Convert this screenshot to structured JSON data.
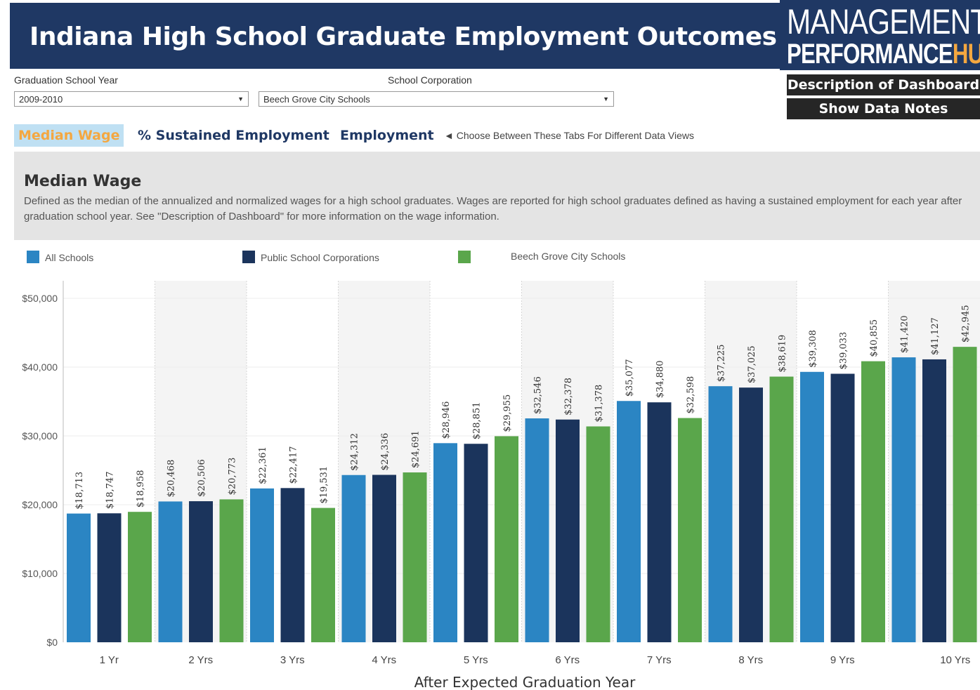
{
  "header": {
    "title": "Indiana High School Graduate Employment Outcomes"
  },
  "logo": {
    "line1": "MANAGEMENT",
    "line2a": "PERFORMANCE",
    "line2b": "HUB",
    "hub_color": "#f4a740"
  },
  "filters": {
    "year_label": "Graduation School Year",
    "year_value": "2009-2010",
    "corp_label": "School Corporation",
    "corp_value": "Beech Grove City Schools"
  },
  "buttons": {
    "description": "Description of Dashboard",
    "notes": "Show Data Notes"
  },
  "tabs": [
    {
      "label": "Median Wage",
      "active": true
    },
    {
      "label": "% Sustained Employment",
      "active": false
    },
    {
      "label": "Employment",
      "active": false
    }
  ],
  "tab_hint": "Choose Between These Tabs For Different Data Views",
  "description": {
    "title": "Median Wage",
    "text": "Defined as the median of the annualized and normalized wages for a high school graduates. Wages are reported for high school graduates defined as having a sustained employment for each year after graduation school year. See \"Description of Dashboard\" for more information on the wage information."
  },
  "chart_data": {
    "type": "bar",
    "categories": [
      "1 Yr",
      "2 Yrs",
      "3 Yrs",
      "4 Yrs",
      "5 Yrs",
      "6 Yrs",
      "7 Yrs",
      "8 Yrs",
      "9 Yrs",
      "10 Yrs"
    ],
    "series": [
      {
        "name": "All Schools",
        "color": "#2b85c3",
        "values": [
          18713,
          20468,
          22361,
          24312,
          28946,
          32546,
          35077,
          37225,
          39308,
          41420
        ],
        "labels": [
          "$18,713",
          "$20,468",
          "$22,361",
          "$24,312",
          "$28,946",
          "$32,546",
          "$35,077",
          "$37,225",
          "$39,308",
          "$41,420"
        ]
      },
      {
        "name": "Public School Corporations",
        "color": "#1b345c",
        "values": [
          18747,
          20506,
          22417,
          24336,
          28851,
          32378,
          34880,
          37025,
          39033,
          41127
        ],
        "labels": [
          "$18,747",
          "$20,506",
          "$22,417",
          "$24,336",
          "$28,851",
          "$32,378",
          "$34,880",
          "$37,025",
          "$39,033",
          "$41,127"
        ]
      },
      {
        "name": "Beech Grove City Schools",
        "color": "#5aa64b",
        "values": [
          18958,
          20773,
          19531,
          24691,
          29955,
          31378,
          32598,
          38619,
          40855,
          42945
        ],
        "labels": [
          "$18,958",
          "$20,773",
          "$19,531",
          "$24,691",
          "$29,955",
          "$31,378",
          "$32,598",
          "$38,619",
          "$40,855",
          "$42,945"
        ]
      }
    ],
    "xlabel": "After Expected Graduation Year",
    "ylabel": "",
    "ylim": [
      0,
      50000
    ],
    "yticks": [
      0,
      10000,
      20000,
      30000,
      40000,
      50000
    ],
    "ytick_labels": [
      "$0",
      "$10,000",
      "$20,000",
      "$30,000",
      "$40,000",
      "$50,000"
    ],
    "legend_position": "top-left",
    "grid": true
  }
}
